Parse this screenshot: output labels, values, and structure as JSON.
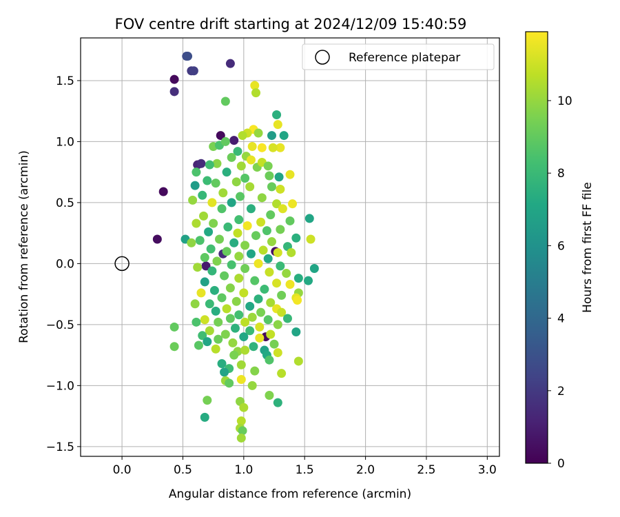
{
  "chart_data": {
    "type": "scatter",
    "title": "FOV centre drift starting at 2024/12/09 15:40:59",
    "xlabel": "Angular distance from reference (arcmin)",
    "ylabel": "Rotation from reference (arcmin)",
    "xlim": [
      -0.34,
      3.1
    ],
    "ylim": [
      -1.58,
      1.85
    ],
    "xticks": [
      0.0,
      0.5,
      1.0,
      1.5,
      2.0,
      2.5,
      3.0
    ],
    "xtick_labels": [
      "0.0",
      "0.5",
      "1.0",
      "1.5",
      "2.0",
      "2.5",
      "3.0"
    ],
    "yticks": [
      -1.5,
      -1.0,
      -0.5,
      0.0,
      0.5,
      1.0,
      1.5
    ],
    "ytick_labels": [
      "−1.5",
      "−1.0",
      "−0.5",
      "0.0",
      "0.5",
      "1.0",
      "1.5"
    ],
    "grid": true,
    "legend": {
      "placement": "top-right",
      "entries": [
        {
          "label": "Reference platepar",
          "marker": "open-circle",
          "color": "#000000"
        }
      ]
    },
    "reference_point": {
      "x": 0.0,
      "y": 0.0
    },
    "colorbar": {
      "label": "Hours from first FF file",
      "colormap": "viridis",
      "range": [
        0,
        11.9
      ],
      "ticks": [
        0,
        2,
        4,
        6,
        8,
        10
      ],
      "tick_labels": [
        "0",
        "2",
        "4",
        "6",
        "8",
        "10"
      ]
    },
    "points": [
      {
        "x": 0.53,
        "y": 1.7,
        "h": 2.7
      },
      {
        "x": 0.54,
        "y": 1.7,
        "h": 2.8
      },
      {
        "x": 0.57,
        "y": 1.58,
        "h": 2.0
      },
      {
        "x": 0.59,
        "y": 1.58,
        "h": 2.2
      },
      {
        "x": 0.89,
        "y": 1.64,
        "h": 1.5
      },
      {
        "x": 0.43,
        "y": 1.51,
        "h": 0.3
      },
      {
        "x": 0.43,
        "y": 1.41,
        "h": 1.6
      },
      {
        "x": 0.34,
        "y": 0.59,
        "h": 0.3
      },
      {
        "x": 0.29,
        "y": 0.2,
        "h": 0.4
      },
      {
        "x": 0.62,
        "y": 0.81,
        "h": 1.2
      },
      {
        "x": 0.65,
        "y": 0.82,
        "h": 1.5
      },
      {
        "x": 0.81,
        "y": 1.05,
        "h": 0.3
      },
      {
        "x": 0.92,
        "y": 1.01,
        "h": 1.0
      },
      {
        "x": 1.18,
        "y": -0.6,
        "h": 0.3
      },
      {
        "x": 1.26,
        "y": 0.1,
        "h": 0.5
      },
      {
        "x": 0.69,
        "y": -0.02,
        "h": 0.9
      },
      {
        "x": 0.83,
        "y": 0.08,
        "h": 1.5
      },
      {
        "x": 1.09,
        "y": 1.46,
        "h": 11.5
      },
      {
        "x": 1.1,
        "y": 1.4,
        "h": 10.5
      },
      {
        "x": 0.85,
        "y": 1.33,
        "h": 9.0
      },
      {
        "x": 1.27,
        "y": 1.22,
        "h": 7.5
      },
      {
        "x": 1.28,
        "y": 1.14,
        "h": 11.5
      },
      {
        "x": 1.33,
        "y": 1.05,
        "h": 7.0
      },
      {
        "x": 1.08,
        "y": 1.1,
        "h": 11.8
      },
      {
        "x": 1.03,
        "y": 1.07,
        "h": 11.0
      },
      {
        "x": 0.99,
        "y": 1.05,
        "h": 10.5
      },
      {
        "x": 1.23,
        "y": 1.05,
        "h": 6.5
      },
      {
        "x": 1.12,
        "y": 1.07,
        "h": 10.0
      },
      {
        "x": 1.3,
        "y": 0.95,
        "h": 11.5
      },
      {
        "x": 1.24,
        "y": 0.95,
        "h": 11.2
      },
      {
        "x": 1.15,
        "y": 0.95,
        "h": 11.8
      },
      {
        "x": 1.07,
        "y": 0.96,
        "h": 11.5
      },
      {
        "x": 0.75,
        "y": 0.96,
        "h": 9.5
      },
      {
        "x": 0.8,
        "y": 0.97,
        "h": 8.5
      },
      {
        "x": 0.85,
        "y": 1.0,
        "h": 9.0
      },
      {
        "x": 0.95,
        "y": 0.92,
        "h": 8.0
      },
      {
        "x": 1.02,
        "y": 0.88,
        "h": 10.0
      },
      {
        "x": 0.9,
        "y": 0.87,
        "h": 9.2
      },
      {
        "x": 1.06,
        "y": 0.85,
        "h": 11.5
      },
      {
        "x": 0.78,
        "y": 0.82,
        "h": 9.8
      },
      {
        "x": 0.72,
        "y": 0.81,
        "h": 8.2
      },
      {
        "x": 0.98,
        "y": 0.8,
        "h": 10.2
      },
      {
        "x": 1.11,
        "y": 0.79,
        "h": 9.6
      },
      {
        "x": 1.15,
        "y": 0.83,
        "h": 10.8
      },
      {
        "x": 1.2,
        "y": 0.8,
        "h": 9.5
      },
      {
        "x": 0.61,
        "y": 0.75,
        "h": 8.5
      },
      {
        "x": 0.86,
        "y": 0.75,
        "h": 7.5
      },
      {
        "x": 1.38,
        "y": 0.73,
        "h": 11.5
      },
      {
        "x": 1.29,
        "y": 0.71,
        "h": 7.0
      },
      {
        "x": 1.21,
        "y": 0.72,
        "h": 9.2
      },
      {
        "x": 1.01,
        "y": 0.7,
        "h": 8.7
      },
      {
        "x": 0.94,
        "y": 0.67,
        "h": 9.9
      },
      {
        "x": 0.7,
        "y": 0.68,
        "h": 8.1
      },
      {
        "x": 0.6,
        "y": 0.64,
        "h": 6.5
      },
      {
        "x": 0.77,
        "y": 0.66,
        "h": 9.0
      },
      {
        "x": 1.05,
        "y": 0.63,
        "h": 10.3
      },
      {
        "x": 1.23,
        "y": 0.63,
        "h": 9.1
      },
      {
        "x": 1.3,
        "y": 0.61,
        "h": 11.0
      },
      {
        "x": 0.66,
        "y": 0.56,
        "h": 7.9
      },
      {
        "x": 0.83,
        "y": 0.58,
        "h": 10.2
      },
      {
        "x": 0.97,
        "y": 0.55,
        "h": 8.8
      },
      {
        "x": 1.15,
        "y": 0.54,
        "h": 9.9
      },
      {
        "x": 1.4,
        "y": 0.49,
        "h": 11.6
      },
      {
        "x": 0.58,
        "y": 0.52,
        "h": 10.0
      },
      {
        "x": 0.74,
        "y": 0.5,
        "h": 11.4
      },
      {
        "x": 0.9,
        "y": 0.5,
        "h": 7.0
      },
      {
        "x": 1.27,
        "y": 0.49,
        "h": 10.5
      },
      {
        "x": 1.32,
        "y": 0.45,
        "h": 11.3
      },
      {
        "x": 1.06,
        "y": 0.45,
        "h": 7.5
      },
      {
        "x": 0.82,
        "y": 0.45,
        "h": 8.6
      },
      {
        "x": 1.22,
        "y": 0.4,
        "h": 9.0
      },
      {
        "x": 0.67,
        "y": 0.39,
        "h": 10.2
      },
      {
        "x": 1.54,
        "y": 0.37,
        "h": 7.0
      },
      {
        "x": 1.38,
        "y": 0.35,
        "h": 9.0
      },
      {
        "x": 0.96,
        "y": 0.36,
        "h": 8.3
      },
      {
        "x": 1.14,
        "y": 0.34,
        "h": 11.0
      },
      {
        "x": 0.75,
        "y": 0.33,
        "h": 9.6
      },
      {
        "x": 0.61,
        "y": 0.33,
        "h": 10.4
      },
      {
        "x": 1.03,
        "y": 0.31,
        "h": 11.7
      },
      {
        "x": 0.87,
        "y": 0.3,
        "h": 8.0
      },
      {
        "x": 1.3,
        "y": 0.28,
        "h": 9.4
      },
      {
        "x": 1.19,
        "y": 0.27,
        "h": 8.6
      },
      {
        "x": 0.71,
        "y": 0.26,
        "h": 7.2
      },
      {
        "x": 0.95,
        "y": 0.25,
        "h": 10.8
      },
      {
        "x": 1.1,
        "y": 0.23,
        "h": 9.1
      },
      {
        "x": 1.43,
        "y": 0.21,
        "h": 7.5
      },
      {
        "x": 1.55,
        "y": 0.2,
        "h": 11.0
      },
      {
        "x": 0.52,
        "y": 0.2,
        "h": 6.8
      },
      {
        "x": 0.64,
        "y": 0.19,
        "h": 8.5
      },
      {
        "x": 0.8,
        "y": 0.2,
        "h": 9.4
      },
      {
        "x": 1.23,
        "y": 0.18,
        "h": 10.0
      },
      {
        "x": 0.92,
        "y": 0.17,
        "h": 7.4
      },
      {
        "x": 1.01,
        "y": 0.15,
        "h": 9.7
      },
      {
        "x": 1.36,
        "y": 0.14,
        "h": 7.8
      },
      {
        "x": 0.57,
        "y": 0.17,
        "h": 9.9
      },
      {
        "x": 0.73,
        "y": 0.12,
        "h": 8.3
      },
      {
        "x": 1.16,
        "y": 0.11,
        "h": 10.6
      },
      {
        "x": 0.86,
        "y": 0.1,
        "h": 9.1
      },
      {
        "x": 1.28,
        "y": 0.09,
        "h": 11.1
      },
      {
        "x": 1.06,
        "y": 0.08,
        "h": 7.0
      },
      {
        "x": 0.96,
        "y": 0.06,
        "h": 10.0
      },
      {
        "x": 0.68,
        "y": 0.05,
        "h": 8.9
      },
      {
        "x": 1.2,
        "y": 0.04,
        "h": 7.2
      },
      {
        "x": 1.39,
        "y": 0.09,
        "h": 10.5
      },
      {
        "x": 0.78,
        "y": 0.02,
        "h": 9.6
      },
      {
        "x": 1.12,
        "y": 0.0,
        "h": 11.6
      },
      {
        "x": 0.9,
        "y": -0.01,
        "h": 8.4
      },
      {
        "x": 1.3,
        "y": -0.02,
        "h": 8.0
      },
      {
        "x": 1.58,
        "y": -0.04,
        "h": 7.0
      },
      {
        "x": 0.62,
        "y": -0.03,
        "h": 10.2
      },
      {
        "x": 1.01,
        "y": -0.04,
        "h": 9.3
      },
      {
        "x": 0.74,
        "y": -0.06,
        "h": 7.8
      },
      {
        "x": 1.21,
        "y": -0.07,
        "h": 10.9
      },
      {
        "x": 1.45,
        "y": -0.12,
        "h": 7.4
      },
      {
        "x": 1.35,
        "y": -0.08,
        "h": 10.0
      },
      {
        "x": 0.84,
        "y": -0.1,
        "h": 9.0
      },
      {
        "x": 0.96,
        "y": -0.12,
        "h": 10.4
      },
      {
        "x": 1.09,
        "y": -0.14,
        "h": 8.7
      },
      {
        "x": 1.53,
        "y": -0.14,
        "h": 7.2
      },
      {
        "x": 0.68,
        "y": -0.15,
        "h": 6.8
      },
      {
        "x": 1.27,
        "y": -0.16,
        "h": 11.2
      },
      {
        "x": 1.38,
        "y": -0.17,
        "h": 11.6
      },
      {
        "x": 0.89,
        "y": -0.2,
        "h": 9.7
      },
      {
        "x": 1.17,
        "y": -0.21,
        "h": 8.1
      },
      {
        "x": 0.76,
        "y": -0.22,
        "h": 7.5
      },
      {
        "x": 1.0,
        "y": -0.24,
        "h": 10.8
      },
      {
        "x": 0.65,
        "y": -0.24,
        "h": 11.5
      },
      {
        "x": 1.45,
        "y": -0.24,
        "h": 10.0
      },
      {
        "x": 1.31,
        "y": -0.26,
        "h": 9.3
      },
      {
        "x": 1.43,
        "y": -0.28,
        "h": 11.4
      },
      {
        "x": 0.82,
        "y": -0.28,
        "h": 8.9
      },
      {
        "x": 1.12,
        "y": -0.29,
        "h": 7.6
      },
      {
        "x": 0.94,
        "y": -0.31,
        "h": 9.8
      },
      {
        "x": 1.44,
        "y": -0.3,
        "h": 11.7
      },
      {
        "x": 1.22,
        "y": -0.32,
        "h": 10.3
      },
      {
        "x": 0.72,
        "y": -0.33,
        "h": 8.0
      },
      {
        "x": 0.6,
        "y": -0.33,
        "h": 9.9
      },
      {
        "x": 1.05,
        "y": -0.35,
        "h": 7.1
      },
      {
        "x": 0.86,
        "y": -0.37,
        "h": 10.6
      },
      {
        "x": 1.27,
        "y": -0.37,
        "h": 11.5
      },
      {
        "x": 0.77,
        "y": -0.39,
        "h": 7.4
      },
      {
        "x": 1.14,
        "y": -0.4,
        "h": 9.5
      },
      {
        "x": 1.31,
        "y": -0.4,
        "h": 10.9
      },
      {
        "x": 0.96,
        "y": -0.42,
        "h": 8.3
      },
      {
        "x": 1.07,
        "y": -0.44,
        "h": 10.1
      },
      {
        "x": 0.89,
        "y": -0.45,
        "h": 9.0
      },
      {
        "x": 1.2,
        "y": -0.46,
        "h": 8.7
      },
      {
        "x": 1.36,
        "y": -0.45,
        "h": 7.9
      },
      {
        "x": 0.68,
        "y": -0.46,
        "h": 11.0
      },
      {
        "x": 0.79,
        "y": -0.48,
        "h": 9.4
      },
      {
        "x": 1.01,
        "y": -0.48,
        "h": 10.7
      },
      {
        "x": 0.61,
        "y": -0.48,
        "h": 8.5
      },
      {
        "x": 1.28,
        "y": -0.5,
        "h": 9.8
      },
      {
        "x": 1.13,
        "y": -0.52,
        "h": 11.2
      },
      {
        "x": 0.43,
        "y": -0.52,
        "h": 9.0
      },
      {
        "x": 0.93,
        "y": -0.53,
        "h": 7.6
      },
      {
        "x": 0.72,
        "y": -0.55,
        "h": 10.3
      },
      {
        "x": 1.05,
        "y": -0.55,
        "h": 8.0
      },
      {
        "x": 1.43,
        "y": -0.56,
        "h": 7.0
      },
      {
        "x": 0.85,
        "y": -0.58,
        "h": 9.6
      },
      {
        "x": 1.22,
        "y": -0.58,
        "h": 10.8
      },
      {
        "x": 0.66,
        "y": -0.59,
        "h": 8.2
      },
      {
        "x": 1.0,
        "y": -0.6,
        "h": 7.1
      },
      {
        "x": 1.13,
        "y": -0.61,
        "h": 11.5
      },
      {
        "x": 0.79,
        "y": -0.62,
        "h": 9.2
      },
      {
        "x": 0.7,
        "y": -0.64,
        "h": 7.0
      },
      {
        "x": 0.91,
        "y": -0.65,
        "h": 10.0
      },
      {
        "x": 1.25,
        "y": -0.66,
        "h": 9.4
      },
      {
        "x": 0.43,
        "y": -0.68,
        "h": 9.2
      },
      {
        "x": 0.63,
        "y": -0.67,
        "h": 8.8
      },
      {
        "x": 1.08,
        "y": -0.68,
        "h": 7.7
      },
      {
        "x": 0.77,
        "y": -0.7,
        "h": 10.6
      },
      {
        "x": 1.17,
        "y": -0.71,
        "h": 6.9
      },
      {
        "x": 0.95,
        "y": -0.72,
        "h": 9.9
      },
      {
        "x": 1.01,
        "y": -0.71,
        "h": 10.4
      },
      {
        "x": 1.19,
        "y": -0.75,
        "h": 7.2
      },
      {
        "x": 1.28,
        "y": -0.73,
        "h": 11.0
      },
      {
        "x": 0.92,
        "y": -0.75,
        "h": 9.5
      },
      {
        "x": 1.21,
        "y": -0.79,
        "h": 8.6
      },
      {
        "x": 0.82,
        "y": -0.82,
        "h": 7.4
      },
      {
        "x": 0.98,
        "y": -0.83,
        "h": 10.2
      },
      {
        "x": 1.45,
        "y": -0.8,
        "h": 10.5
      },
      {
        "x": 0.88,
        "y": -0.86,
        "h": 8.1
      },
      {
        "x": 1.09,
        "y": -0.88,
        "h": 9.7
      },
      {
        "x": 0.84,
        "y": -0.89,
        "h": 6.9
      },
      {
        "x": 1.31,
        "y": -0.9,
        "h": 10.6
      },
      {
        "x": 0.85,
        "y": -0.96,
        "h": 10.1
      },
      {
        "x": 0.98,
        "y": -0.95,
        "h": 11.6
      },
      {
        "x": 0.88,
        "y": -0.98,
        "h": 9.0
      },
      {
        "x": 1.07,
        "y": -1.0,
        "h": 10.0
      },
      {
        "x": 1.21,
        "y": -1.08,
        "h": 9.6
      },
      {
        "x": 0.7,
        "y": -1.12,
        "h": 9.4
      },
      {
        "x": 0.97,
        "y": -1.13,
        "h": 9.9
      },
      {
        "x": 1.28,
        "y": -1.14,
        "h": 7.6
      },
      {
        "x": 1.0,
        "y": -1.18,
        "h": 10.4
      },
      {
        "x": 0.68,
        "y": -1.26,
        "h": 7.3
      },
      {
        "x": 0.98,
        "y": -1.29,
        "h": 10.6
      },
      {
        "x": 0.97,
        "y": -1.35,
        "h": 10.3
      },
      {
        "x": 0.99,
        "y": -1.37,
        "h": 9.1
      },
      {
        "x": 0.98,
        "y": -1.43,
        "h": 10.2
      }
    ]
  }
}
